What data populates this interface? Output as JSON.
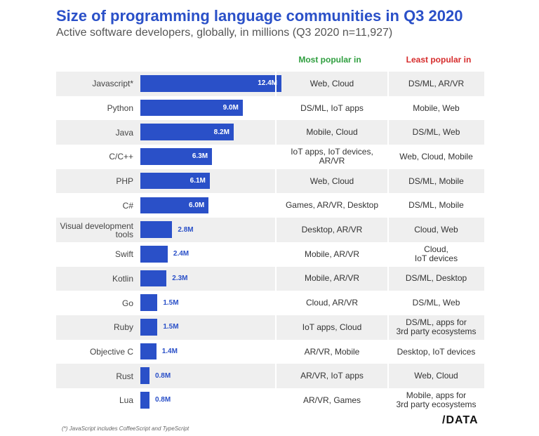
{
  "chart_data": {
    "type": "bar",
    "orientation": "horizontal",
    "title": "Size of programming language communities in Q3 2020",
    "subtitle": "Active software developers, globally, in millions (Q3 2020 n=11,927)",
    "categories": [
      "Javascript*",
      "Python",
      "Java",
      "C/C++",
      "PHP",
      "C#",
      "Visual development\ntools",
      "Swift",
      "Kotlin",
      "Go",
      "Ruby",
      "Objective C",
      "Rust",
      "Lua"
    ],
    "values": [
      12.4,
      9.0,
      8.2,
      6.3,
      6.1,
      6.0,
      2.8,
      2.4,
      2.3,
      1.5,
      1.5,
      1.4,
      0.8,
      0.8
    ],
    "value_labels": [
      "12.4M",
      "9.0M",
      "8.2M",
      "6.3M",
      "6.1M",
      "6.0M",
      "2.8M",
      "2.4M",
      "2.3M",
      "1.5M",
      "1.5M",
      "1.4M",
      "0.8M",
      "0.8M"
    ],
    "color": "#2a50c8",
    "column_headers": [
      "Most popular in",
      "Least popular in"
    ],
    "most_popular": [
      "Web, Cloud",
      "DS/ML, IoT apps",
      "Mobile, Cloud",
      "IoT apps, IoT devices,\nAR/VR",
      "Web, Cloud",
      "Games, AR/VR, Desktop",
      "Desktop, AR/VR",
      "Mobile, AR/VR",
      "Mobile, AR/VR",
      "Cloud, AR/VR",
      "IoT apps, Cloud",
      "AR/VR, Mobile",
      "AR/VR, IoT apps",
      "AR/VR, Games"
    ],
    "least_popular": [
      "DS/ML, AR/VR",
      "Mobile, Web",
      "DS/ML, Web",
      "Web, Cloud, Mobile",
      "DS/ML, Mobile",
      "DS/ML, Mobile",
      "Cloud, Web",
      "Cloud,\nIoT devices",
      "DS/ML, Desktop",
      "DS/ML, Web",
      "DS/ML, apps for\n3rd party ecosystems",
      "Desktop, IoT devices",
      "Web, Cloud",
      "Mobile, apps for\n3rd party ecosystems"
    ],
    "footnote": "(*) JavaScript includes CoffeeScript and TypeScript",
    "source": "/DATA"
  }
}
